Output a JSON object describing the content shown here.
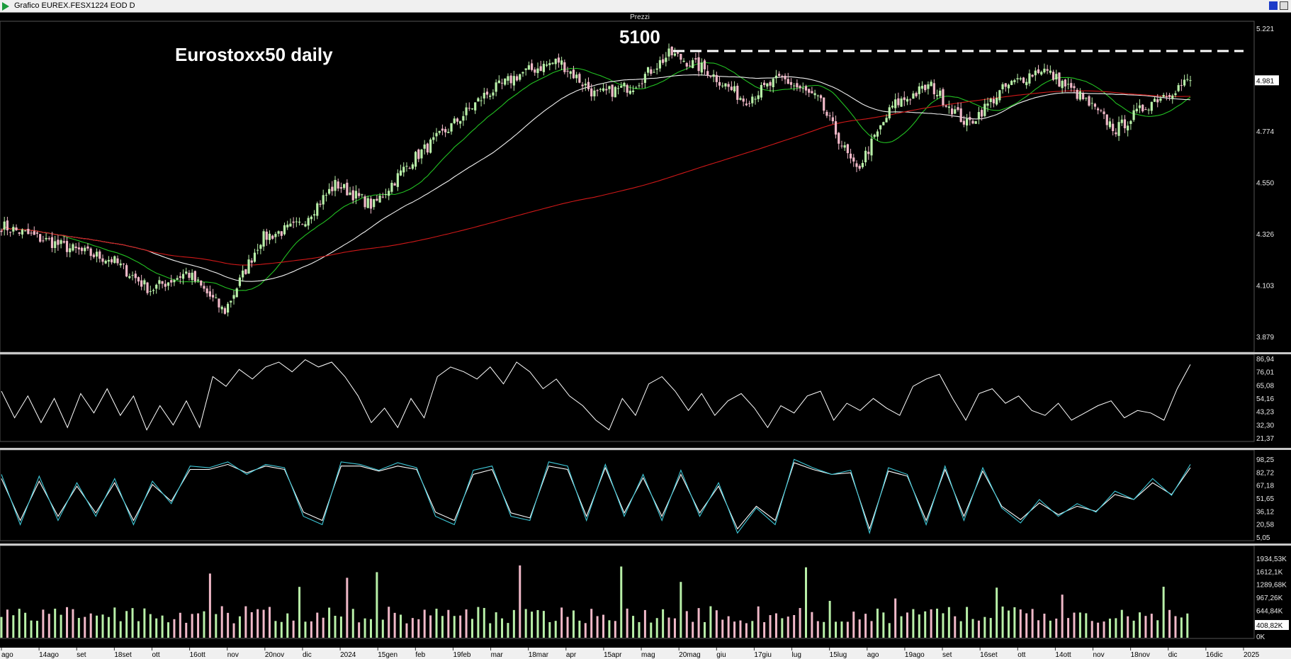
{
  "window": {
    "title": "Grafico EUREX.FESX1224 EOD D"
  },
  "panels": {
    "price_title": "Prezzi",
    "separator": "..."
  },
  "annotations": {
    "chart_label": "Eurostoxx50 daily",
    "resistance_label": "5100"
  },
  "colors": {
    "bull": "#b8f0a8",
    "bear": "#f0b8c8",
    "ma_fast": "#22c022",
    "ma_mid": "#f0f0f0",
    "ma_slow": "#d01818",
    "osc_main": "#ffffff",
    "osc_signal": "#3ec8d8",
    "last_price_bg": "#ffffff"
  },
  "chart_data": [
    {
      "type": "candlestick",
      "name": "price",
      "title": "Prezzi",
      "y_ticks": [
        "5.221",
        "4.997",
        "4.774",
        "4.550",
        "4.326",
        "4.103",
        "3.879"
      ],
      "last_price": "4.981",
      "ylim": [
        3879,
        5221
      ],
      "resistance": 5100,
      "x_ticks": [
        "ago",
        "14ago",
        "set",
        "18set",
        "ott",
        "16ott",
        "nov",
        "20nov",
        "dic",
        "2024",
        "15gen",
        "feb",
        "19feb",
        "mar",
        "18mar",
        "apr",
        "15apr",
        "mag",
        "20mag",
        "giu",
        "17giu",
        "lug",
        "15lug",
        "ago",
        "19ago",
        "set",
        "16set",
        "ott",
        "14ott",
        "nov",
        "18nov",
        "dic",
        "16dic",
        "2025"
      ],
      "closes_checkpoints": [
        {
          "x": "ago",
          "close": 4390
        },
        {
          "x": "14ago",
          "close": 4340
        },
        {
          "x": "set",
          "close": 4290
        },
        {
          "x": "18set",
          "close": 4250
        },
        {
          "x": "ott",
          "close": 4130
        },
        {
          "x": "16ott",
          "close": 4200
        },
        {
          "x": "nov",
          "close": 4040
        },
        {
          "x": "20nov",
          "close": 4340
        },
        {
          "x": "dic",
          "close": 4390
        },
        {
          "x": "2024",
          "close": 4560
        },
        {
          "x": "15gen",
          "close": 4470
        },
        {
          "x": "feb",
          "close": 4650
        },
        {
          "x": "19feb",
          "close": 4780
        },
        {
          "x": "mar",
          "close": 4920
        },
        {
          "x": "18mar",
          "close": 5010
        },
        {
          "x": "apr",
          "close": 5060
        },
        {
          "x": "15apr",
          "close": 4920
        },
        {
          "x": "mag",
          "close": 4960
        },
        {
          "x": "20mag",
          "close": 5090
        },
        {
          "x": "giu",
          "close": 5020
        },
        {
          "x": "17giu",
          "close": 4900
        },
        {
          "x": "lug",
          "close": 4990
        },
        {
          "x": "15lug",
          "close": 4900
        },
        {
          "x": "ago",
          "close": 4610
        },
        {
          "x": "19ago",
          "close": 4880
        },
        {
          "x": "set",
          "close": 4960
        },
        {
          "x": "16set",
          "close": 4800
        },
        {
          "x": "ott",
          "close": 4950
        },
        {
          "x": "14ott",
          "close": 5030
        },
        {
          "x": "nov",
          "close": 4920
        },
        {
          "x": "18nov",
          "close": 4780
        },
        {
          "x": "dic",
          "close": 4900
        },
        {
          "x": "16dic",
          "close": 4981
        }
      ],
      "moving_averages": [
        "fast (green)",
        "mid (white)",
        "slow (red)"
      ]
    },
    {
      "type": "line",
      "name": "oscillator-1",
      "y_ticks": [
        "86,94",
        "76,01",
        "65,08",
        "54,16",
        "43,23",
        "32,30",
        "21,37"
      ],
      "ylim": [
        21.37,
        86.94
      ],
      "values": [
        60,
        38,
        56,
        34,
        54,
        30,
        58,
        42,
        62,
        40,
        56,
        28,
        48,
        32,
        52,
        30,
        72,
        64,
        78,
        70,
        80,
        84,
        76,
        86,
        80,
        84,
        72,
        56,
        34,
        46,
        30,
        54,
        38,
        72,
        80,
        76,
        70,
        80,
        66,
        84,
        76,
        62,
        70,
        56,
        48,
        36,
        28,
        54,
        40,
        66,
        72,
        60,
        44,
        58,
        40,
        52,
        58,
        46,
        30,
        48,
        42,
        56,
        60,
        36,
        50,
        44,
        54,
        46,
        40,
        64,
        70,
        74,
        54,
        36,
        58,
        62,
        50,
        56,
        44,
        40,
        50,
        36,
        42,
        48,
        52,
        38,
        44,
        42,
        36,
        62,
        82
      ]
    },
    {
      "type": "line",
      "name": "stochastic",
      "series": [
        {
          "name": "%K"
        },
        {
          "name": "%D"
        }
      ],
      "y_ticks": [
        "98,25",
        "82,72",
        "67,18",
        "51,65",
        "36,12",
        "20,58",
        "5,05"
      ],
      "ylim": [
        5.05,
        98.25
      ],
      "values_k": [
        80,
        20,
        78,
        25,
        70,
        30,
        75,
        20,
        72,
        45,
        90,
        88,
        95,
        80,
        92,
        88,
        30,
        20,
        95,
        92,
        85,
        94,
        88,
        30,
        20,
        85,
        90,
        30,
        25,
        95,
        90,
        25,
        92,
        30,
        80,
        25,
        85,
        30,
        70,
        10,
        40,
        20,
        98,
        88,
        80,
        85,
        10,
        88,
        80,
        20,
        90,
        25,
        88,
        40,
        22,
        50,
        30,
        45,
        35,
        60,
        50,
        75,
        55,
        92
      ],
      "values_d": [
        75,
        25,
        72,
        30,
        66,
        34,
        70,
        25,
        68,
        48,
        86,
        86,
        92,
        82,
        90,
        86,
        35,
        25,
        90,
        90,
        84,
        90,
        86,
        35,
        25,
        80,
        86,
        34,
        28,
        90,
        86,
        30,
        88,
        34,
        76,
        30,
        80,
        34,
        66,
        15,
        42,
        25,
        94,
        86,
        80,
        82,
        15,
        84,
        78,
        25,
        86,
        30,
        84,
        42,
        26,
        46,
        32,
        42,
        36,
        56,
        50,
        70,
        56,
        88
      ]
    },
    {
      "type": "bar",
      "name": "volume",
      "y_ticks": [
        "1934,53K",
        "1612,1K",
        "1289,68K",
        "967,26K",
        "644,84K",
        "322,42K",
        "0K"
      ],
      "last_volume": "408,82K",
      "ylim": [
        0,
        1934.53
      ],
      "unit": "K"
    }
  ]
}
